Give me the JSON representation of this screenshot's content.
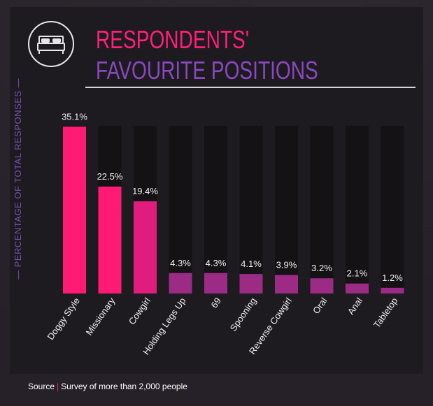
{
  "title_line1": "RESPONDENTS'",
  "title_line2": "FAVOURITE POSITIONS",
  "icon": "bed-icon",
  "source_label": "Source",
  "source_text": "Survey of more than 2,000 people",
  "colors": {
    "title_pink": "#ff1f7a",
    "title_purple": "#8a48c0",
    "bar_hot_pink": "#ff1a73",
    "bar_magenta": "#e01c7e",
    "bar_purple": "#9c2b86",
    "track": "#141215"
  },
  "chart_data": {
    "type": "bar",
    "ylabel": "PERCENTAGE OF TOTAL RESPONSES",
    "xlabel": "",
    "ylim": [
      0,
      40
    ],
    "grid": false,
    "categories": [
      "Doggy Style",
      "Missionary",
      "Cowgirl",
      "Holding Legs Up",
      "69",
      "Spooning",
      "Reverse Cowgirl",
      "Oral",
      "Anal",
      "Tabletop"
    ],
    "values": [
      35.1,
      22.5,
      19.4,
      4.3,
      4.3,
      4.1,
      3.9,
      3.2,
      2.1,
      1.2
    ],
    "value_labels": [
      "35.1%",
      "22.5%",
      "19.4%",
      "4.3%",
      "4.3%",
      "4.1%",
      "3.9%",
      "3.2%",
      "2.1%",
      "1.2%"
    ]
  }
}
